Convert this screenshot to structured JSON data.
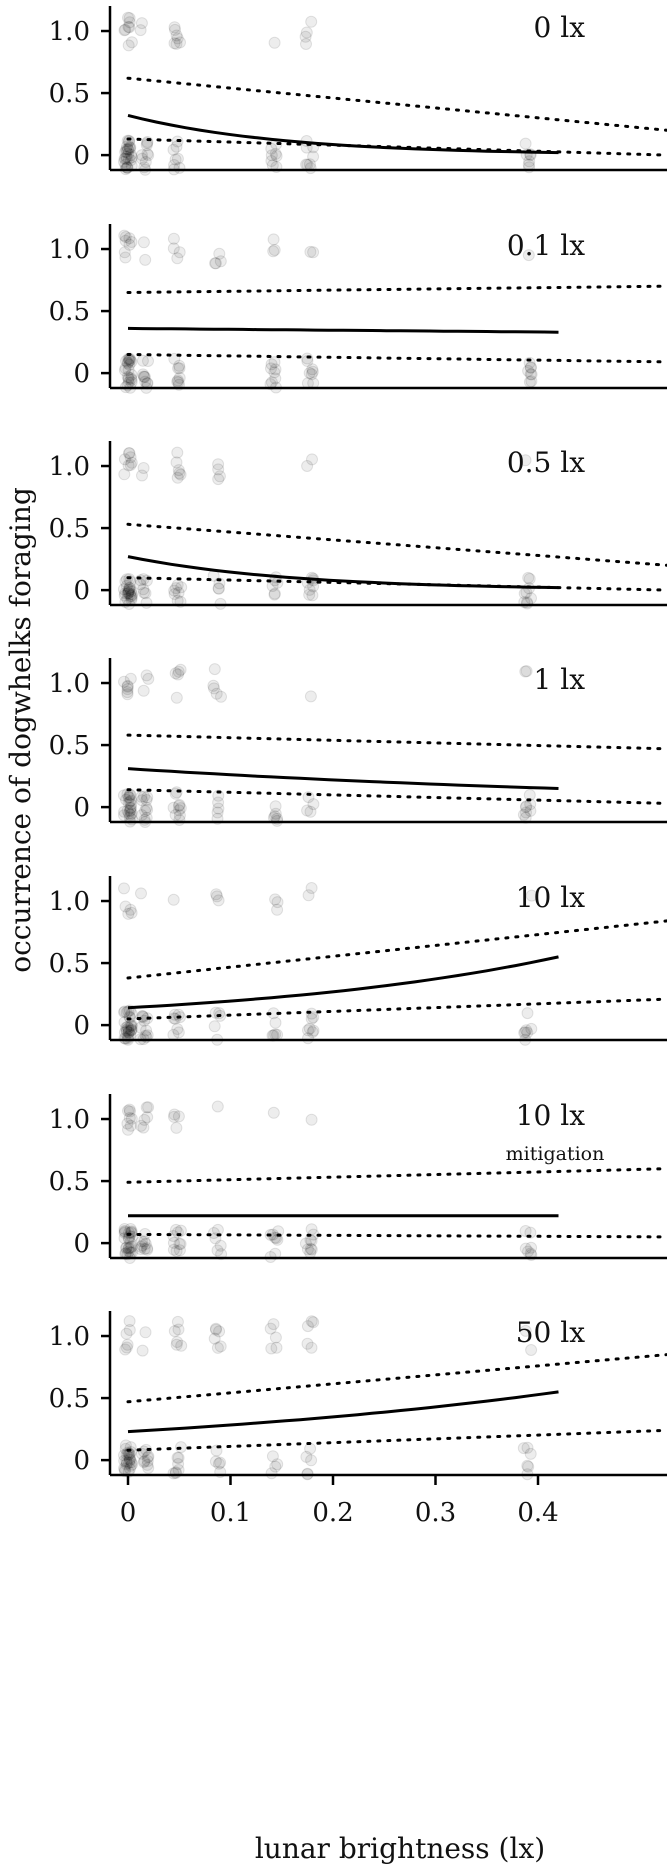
{
  "figure": {
    "ylabel": "occurrence of dogwhelks foraging",
    "xlabel": "lunar brightness (lx)",
    "x_ticks": [
      "0",
      "0.1",
      "0.2",
      "0.3",
      "0.4"
    ],
    "y_ticks": [
      "0",
      "0.5",
      "1.0"
    ]
  },
  "chart_data": [
    {
      "type": "scatter",
      "title": "0 lx",
      "subtitle": "",
      "xlim": [
        -0.01,
        0.42
      ],
      "ylim": [
        -0.12,
        1.25
      ],
      "fit": {
        "x": [
          0,
          0.42
        ],
        "y": [
          0.32,
          0.02
        ]
      },
      "ci_upper": {
        "x": [
          0,
          0.42
        ],
        "y": [
          0.62,
          0.2
        ]
      },
      "ci_lower": {
        "x": [
          0,
          0.42
        ],
        "y": [
          0.13,
          0.0
        ]
      },
      "points": {
        "x_levels": [
          0,
          0.016,
          0.048,
          0.087,
          0.143,
          0.177,
          0.39
        ],
        "n0": [
          28,
          10,
          8,
          0,
          8,
          8,
          7
        ],
        "n1": [
          9,
          2,
          7,
          0,
          1,
          4,
          0
        ]
      }
    },
    {
      "type": "scatter",
      "title": "0.1 lx",
      "subtitle": "",
      "xlim": [
        -0.01,
        0.42
      ],
      "ylim": [
        -0.12,
        1.25
      ],
      "fit": {
        "x": [
          0,
          0.42
        ],
        "y": [
          0.36,
          0.33
        ]
      },
      "ci_upper": {
        "x": [
          0,
          0.42
        ],
        "y": [
          0.65,
          0.7
        ]
      },
      "ci_lower": {
        "x": [
          0,
          0.42
        ],
        "y": [
          0.15,
          0.09
        ]
      },
      "points": {
        "x_levels": [
          0,
          0.016,
          0.048,
          0.087,
          0.143,
          0.177,
          0.39
        ],
        "n0": [
          24,
          10,
          9,
          0,
          9,
          8,
          8
        ],
        "n1": [
          8,
          2,
          4,
          4,
          3,
          2,
          1
        ]
      }
    },
    {
      "type": "scatter",
      "title": "0.5 lx",
      "subtitle": "",
      "xlim": [
        -0.01,
        0.42
      ],
      "ylim": [
        -0.12,
        1.25
      ],
      "fit": {
        "x": [
          0,
          0.42
        ],
        "y": [
          0.27,
          0.02
        ]
      },
      "ci_upper": {
        "x": [
          0,
          0.42
        ],
        "y": [
          0.53,
          0.2
        ]
      },
      "ci_lower": {
        "x": [
          0,
          0.42
        ],
        "y": [
          0.1,
          0.0
        ]
      },
      "points": {
        "x_levels": [
          0,
          0.016,
          0.048,
          0.087,
          0.143,
          0.177,
          0.39
        ],
        "n0": [
          26,
          8,
          8,
          5,
          6,
          8,
          9
        ],
        "n1": [
          8,
          2,
          6,
          4,
          0,
          2,
          1
        ]
      }
    },
    {
      "type": "scatter",
      "title": "1 lx",
      "subtitle": "",
      "xlim": [
        -0.01,
        0.42
      ],
      "ylim": [
        -0.12,
        1.25
      ],
      "fit": {
        "x": [
          0,
          0.42
        ],
        "y": [
          0.31,
          0.15
        ]
      },
      "ci_upper": {
        "x": [
          0,
          0.42
        ],
        "y": [
          0.58,
          0.47
        ]
      },
      "ci_lower": {
        "x": [
          0,
          0.42
        ],
        "y": [
          0.14,
          0.03
        ]
      },
      "points": {
        "x_levels": [
          0,
          0.016,
          0.048,
          0.087,
          0.143,
          0.177,
          0.39
        ],
        "n0": [
          24,
          12,
          10,
          5,
          6,
          4,
          8
        ],
        "n1": [
          7,
          3,
          5,
          5,
          0,
          1,
          2
        ]
      }
    },
    {
      "type": "scatter",
      "title": "10 lx",
      "subtitle": "",
      "xlim": [
        -0.01,
        0.42
      ],
      "ylim": [
        -0.12,
        1.25
      ],
      "fit": {
        "x": [
          0,
          0.42
        ],
        "y": [
          0.14,
          0.55
        ]
      },
      "ci_upper": {
        "x": [
          0,
          0.42
        ],
        "y": [
          0.38,
          0.84
        ]
      },
      "ci_lower": {
        "x": [
          0,
          0.42
        ],
        "y": [
          0.05,
          0.21
        ]
      },
      "points": {
        "x_levels": [
          0,
          0.016,
          0.048,
          0.087,
          0.143,
          0.177,
          0.39
        ],
        "n0": [
          30,
          12,
          8,
          5,
          6,
          8,
          7
        ],
        "n1": [
          5,
          1,
          1,
          3,
          3,
          2,
          1
        ]
      }
    },
    {
      "type": "scatter",
      "title": "10 lx",
      "subtitle": "mitigation",
      "xlim": [
        -0.01,
        0.42
      ],
      "ylim": [
        -0.12,
        1.25
      ],
      "fit": {
        "x": [
          0,
          0.42
        ],
        "y": [
          0.22,
          0.22
        ]
      },
      "ci_upper": {
        "x": [
          0,
          0.42
        ],
        "y": [
          0.49,
          0.6
        ]
      },
      "ci_lower": {
        "x": [
          0,
          0.42
        ],
        "y": [
          0.07,
          0.05
        ]
      },
      "points": {
        "x_levels": [
          0,
          0.016,
          0.048,
          0.087,
          0.143,
          0.177,
          0.39
        ],
        "n0": [
          28,
          10,
          10,
          6,
          8,
          9,
          7
        ],
        "n1": [
          8,
          6,
          4,
          1,
          1,
          1,
          0
        ]
      }
    },
    {
      "type": "scatter",
      "title": "50 lx",
      "subtitle": "",
      "xlim": [
        -0.01,
        0.42
      ],
      "ylim": [
        -0.12,
        1.25
      ],
      "fit": {
        "x": [
          0,
          0.42
        ],
        "y": [
          0.23,
          0.55
        ]
      },
      "ci_upper": {
        "x": [
          0,
          0.42
        ],
        "y": [
          0.47,
          0.85
        ]
      },
      "ci_lower": {
        "x": [
          0,
          0.42
        ],
        "y": [
          0.08,
          0.24
        ]
      },
      "points": {
        "x_levels": [
          0,
          0.016,
          0.048,
          0.087,
          0.143,
          0.177,
          0.39
        ],
        "n0": [
          26,
          10,
          8,
          5,
          4,
          5,
          6
        ],
        "n1": [
          6,
          2,
          6,
          6,
          5,
          5,
          2
        ]
      }
    }
  ]
}
